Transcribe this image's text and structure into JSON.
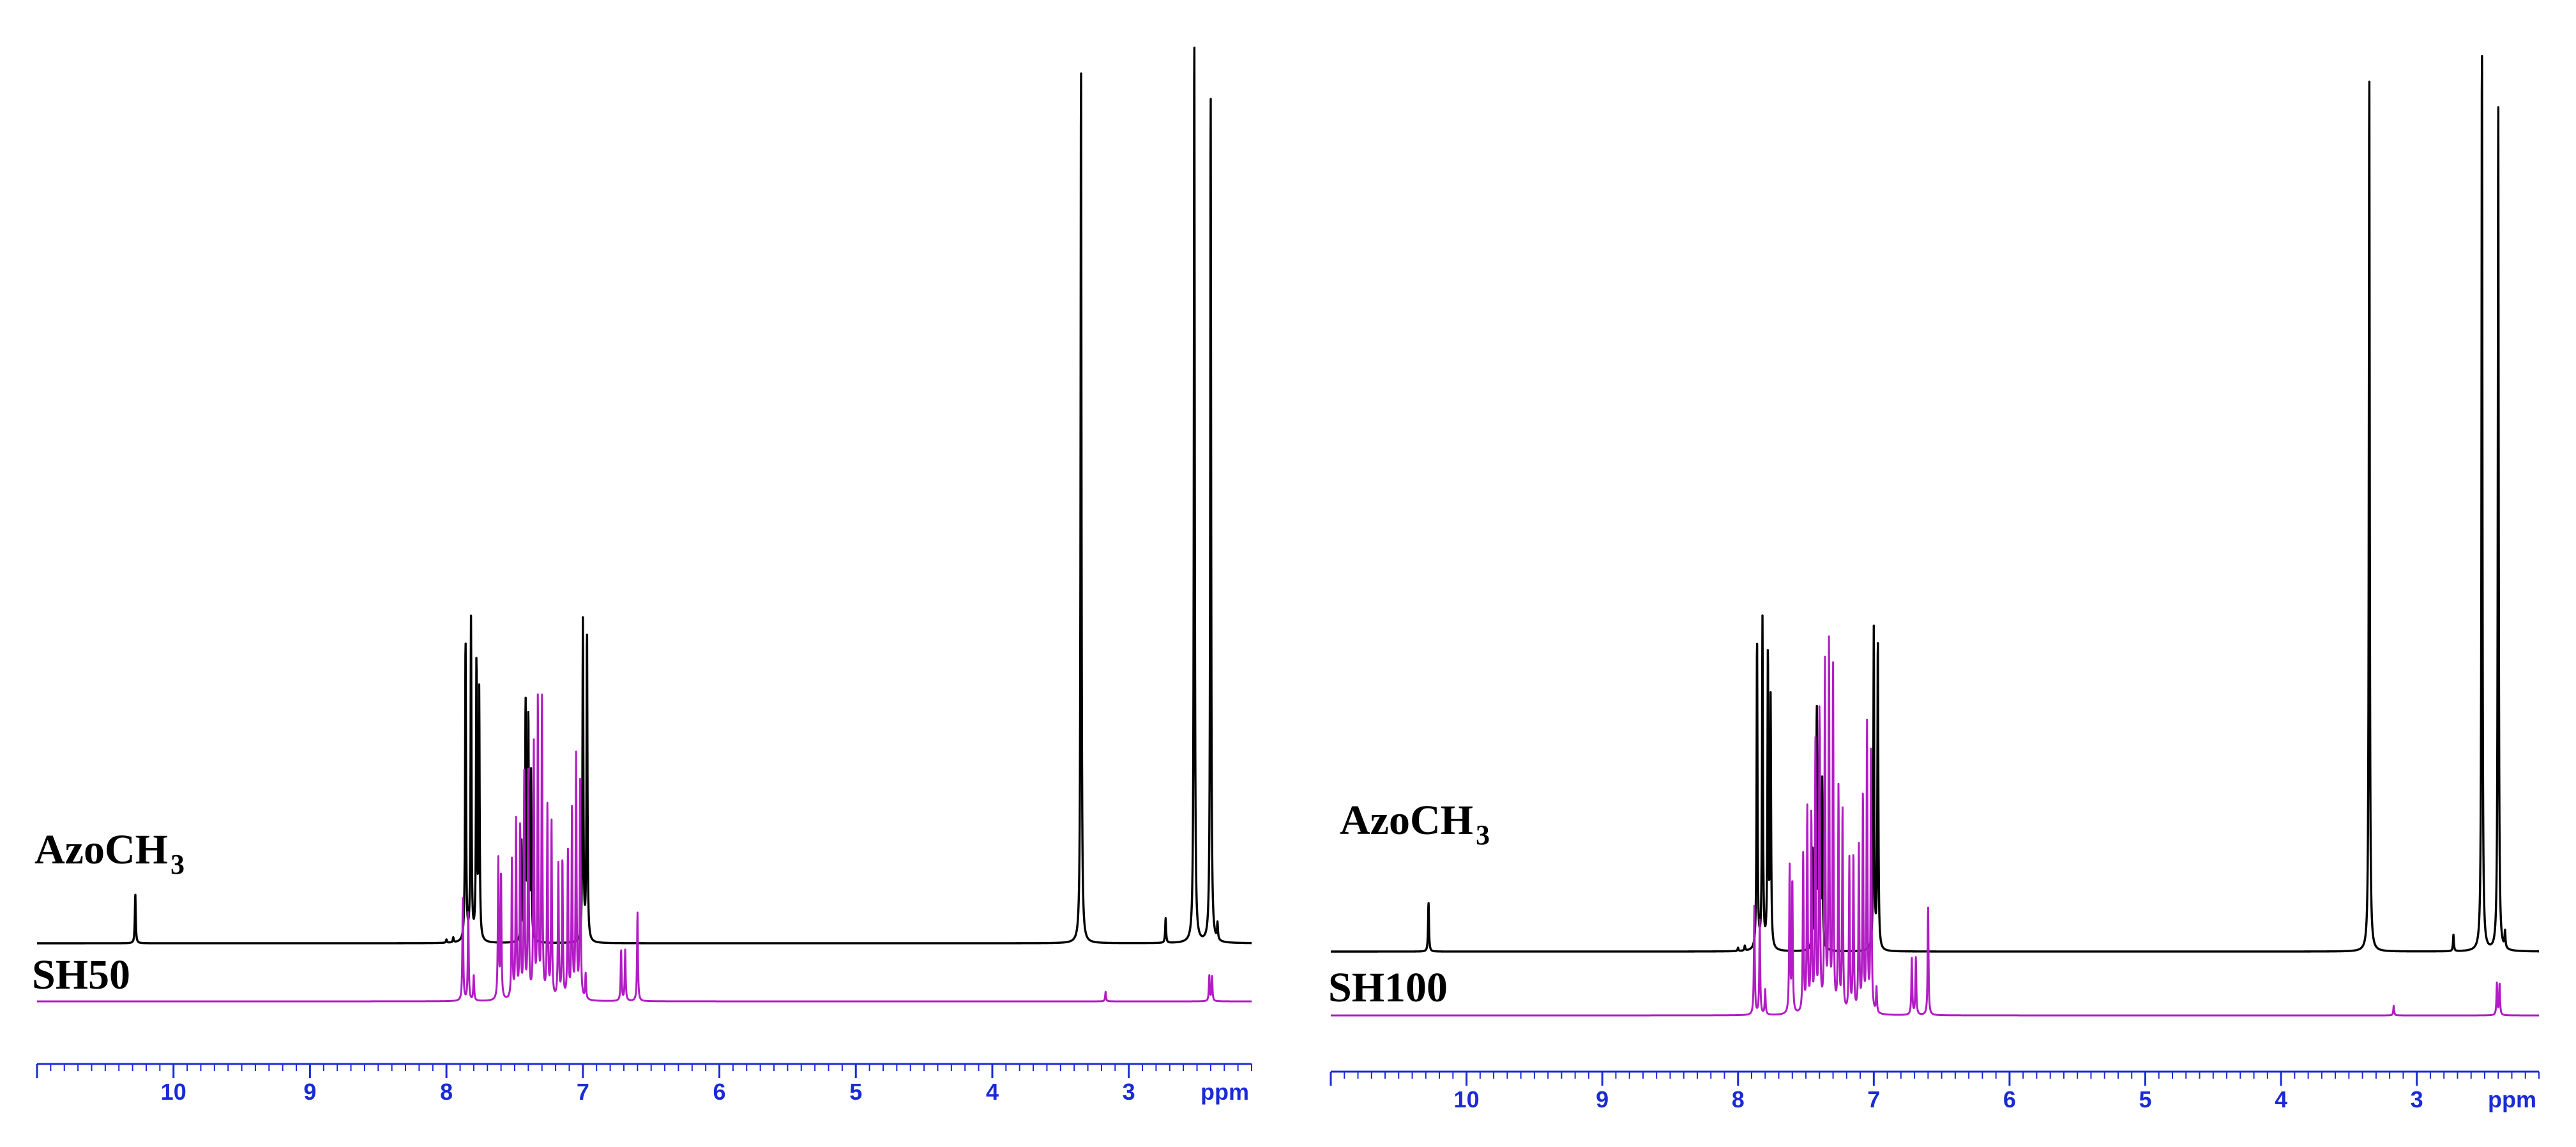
{
  "colors": {
    "axis": "#1a2bd6",
    "reference_trace": "#000000",
    "sample_trace": "#b21cc4"
  },
  "chart_data": [
    {
      "type": "line",
      "xunit": "ppm",
      "x_range": [
        11.0,
        2.1
      ],
      "x_direction": "decreasing",
      "major_ticks": [
        10,
        9,
        8,
        7,
        6,
        5,
        4,
        3
      ],
      "minor_tick_step": 0.1,
      "grid": false,
      "legend": "none",
      "series": [
        {
          "name": "AzoCH",
          "name_subscript": "3",
          "color": "#000000",
          "peaks": [
            {
              "ppm": 10.28,
              "height": 0.06
            },
            {
              "ppm": 8.0,
              "height": 0.004
            },
            {
              "ppm": 7.95,
              "height": 0.006
            },
            {
              "ppm": 7.86,
              "height": 0.37
            },
            {
              "ppm": 7.82,
              "height": 0.39
            },
            {
              "ppm": 7.78,
              "height": 0.34
            },
            {
              "ppm": 7.76,
              "height": 0.3
            },
            {
              "ppm": 7.45,
              "height": 0.12
            },
            {
              "ppm": 7.42,
              "height": 0.29
            },
            {
              "ppm": 7.4,
              "height": 0.27
            },
            {
              "ppm": 7.38,
              "height": 0.2
            },
            {
              "ppm": 7.0,
              "height": 0.39
            },
            {
              "ppm": 6.97,
              "height": 0.38
            },
            {
              "ppm": 3.35,
              "height": 1.08
            },
            {
              "ppm": 2.73,
              "height": 0.03
            },
            {
              "ppm": 2.52,
              "height": 1.12
            },
            {
              "ppm": 2.4,
              "height": 1.04
            },
            {
              "ppm": 2.35,
              "height": 0.02
            }
          ]
        },
        {
          "name": "SH50",
          "color": "#b21cc4",
          "peaks": [
            {
              "ppm": 7.88,
              "height": 0.16
            },
            {
              "ppm": 7.84,
              "height": 0.14
            },
            {
              "ppm": 7.8,
              "height": 0.04
            },
            {
              "ppm": 7.62,
              "height": 0.22
            },
            {
              "ppm": 7.6,
              "height": 0.2
            },
            {
              "ppm": 7.52,
              "height": 0.22
            },
            {
              "ppm": 7.49,
              "height": 0.28
            },
            {
              "ppm": 7.46,
              "height": 0.27
            },
            {
              "ppm": 7.43,
              "height": 0.35
            },
            {
              "ppm": 7.4,
              "height": 0.36
            },
            {
              "ppm": 7.36,
              "height": 0.4
            },
            {
              "ppm": 7.33,
              "height": 0.47
            },
            {
              "ppm": 7.3,
              "height": 0.47
            },
            {
              "ppm": 7.26,
              "height": 0.3
            },
            {
              "ppm": 7.23,
              "height": 0.28
            },
            {
              "ppm": 7.18,
              "height": 0.21
            },
            {
              "ppm": 7.15,
              "height": 0.22
            },
            {
              "ppm": 7.11,
              "height": 0.23
            },
            {
              "ppm": 7.08,
              "height": 0.3
            },
            {
              "ppm": 7.05,
              "height": 0.38
            },
            {
              "ppm": 7.02,
              "height": 0.35
            },
            {
              "ppm": 6.98,
              "height": 0.04
            },
            {
              "ppm": 6.72,
              "height": 0.08
            },
            {
              "ppm": 6.69,
              "height": 0.08
            },
            {
              "ppm": 6.6,
              "height": 0.14
            },
            {
              "ppm": 3.17,
              "height": 0.015
            },
            {
              "ppm": 2.41,
              "height": 0.04
            },
            {
              "ppm": 2.39,
              "height": 0.04
            }
          ]
        }
      ]
    },
    {
      "type": "line",
      "xunit": "ppm",
      "x_range": [
        11.0,
        2.1
      ],
      "x_direction": "decreasing",
      "major_ticks": [
        10,
        9,
        8,
        7,
        6,
        5,
        4,
        3
      ],
      "minor_tick_step": 0.1,
      "grid": false,
      "legend": "none",
      "series": [
        {
          "name": "AzoCH",
          "name_subscript": "3",
          "color": "#000000",
          "peaks": [
            {
              "ppm": 10.28,
              "height": 0.06
            },
            {
              "ppm": 8.0,
              "height": 0.004
            },
            {
              "ppm": 7.95,
              "height": 0.006
            },
            {
              "ppm": 7.86,
              "height": 0.38
            },
            {
              "ppm": 7.82,
              "height": 0.4
            },
            {
              "ppm": 7.78,
              "height": 0.36
            },
            {
              "ppm": 7.76,
              "height": 0.3
            },
            {
              "ppm": 7.45,
              "height": 0.12
            },
            {
              "ppm": 7.42,
              "height": 0.29
            },
            {
              "ppm": 7.4,
              "height": 0.27
            },
            {
              "ppm": 7.38,
              "height": 0.2
            },
            {
              "ppm": 7.0,
              "height": 0.39
            },
            {
              "ppm": 6.97,
              "height": 0.38
            },
            {
              "ppm": 3.35,
              "height": 1.08
            },
            {
              "ppm": 2.73,
              "height": 0.02
            },
            {
              "ppm": 2.52,
              "height": 1.12
            },
            {
              "ppm": 2.4,
              "height": 1.04
            },
            {
              "ppm": 2.35,
              "height": 0.02
            }
          ]
        },
        {
          "name": "SH100",
          "color": "#b21cc4",
          "peaks": [
            {
              "ppm": 7.88,
              "height": 0.17
            },
            {
              "ppm": 7.84,
              "height": 0.15
            },
            {
              "ppm": 7.8,
              "height": 0.04
            },
            {
              "ppm": 7.62,
              "height": 0.23
            },
            {
              "ppm": 7.6,
              "height": 0.21
            },
            {
              "ppm": 7.52,
              "height": 0.25
            },
            {
              "ppm": 7.49,
              "height": 0.32
            },
            {
              "ppm": 7.46,
              "height": 0.31
            },
            {
              "ppm": 7.43,
              "height": 0.42
            },
            {
              "ppm": 7.4,
              "height": 0.48
            },
            {
              "ppm": 7.36,
              "height": 0.55
            },
            {
              "ppm": 7.33,
              "height": 0.58
            },
            {
              "ppm": 7.3,
              "height": 0.54
            },
            {
              "ppm": 7.26,
              "height": 0.35
            },
            {
              "ppm": 7.23,
              "height": 0.32
            },
            {
              "ppm": 7.18,
              "height": 0.24
            },
            {
              "ppm": 7.15,
              "height": 0.25
            },
            {
              "ppm": 7.11,
              "height": 0.26
            },
            {
              "ppm": 7.08,
              "height": 0.34
            },
            {
              "ppm": 7.05,
              "height": 0.45
            },
            {
              "ppm": 7.02,
              "height": 0.42
            },
            {
              "ppm": 6.98,
              "height": 0.04
            },
            {
              "ppm": 6.72,
              "height": 0.09
            },
            {
              "ppm": 6.69,
              "height": 0.09
            },
            {
              "ppm": 6.6,
              "height": 0.17
            },
            {
              "ppm": 3.17,
              "height": 0.015
            },
            {
              "ppm": 2.41,
              "height": 0.05
            },
            {
              "ppm": 2.39,
              "height": 0.05
            }
          ]
        }
      ]
    }
  ]
}
